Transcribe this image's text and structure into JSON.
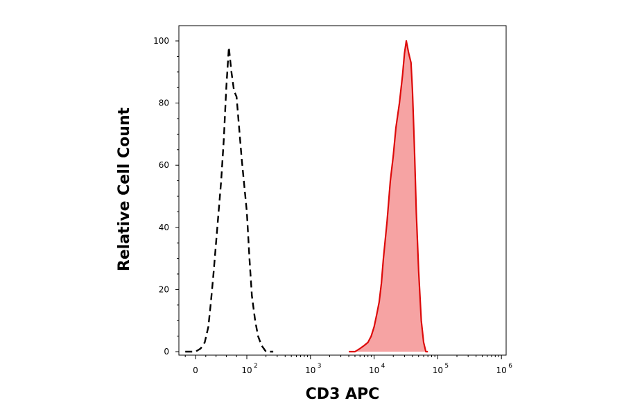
{
  "chart_data": {
    "type": "area",
    "xlabel": "CD3 APC",
    "ylabel": "Relative Cell Count",
    "x_scale": "biexponential",
    "ylim": [
      0,
      100
    ],
    "y_ticks": [
      "0",
      "20",
      "40",
      "60",
      "80",
      "100"
    ],
    "x_ticks": [
      {
        "value": 0,
        "base": "0",
        "exp": ""
      },
      {
        "value": 100,
        "base": "10",
        "exp": "2"
      },
      {
        "value": 1000,
        "base": "10",
        "exp": "3"
      },
      {
        "value": 10000,
        "base": "10",
        "exp": "4"
      },
      {
        "value": 100000,
        "base": "10",
        "exp": "5"
      },
      {
        "value": 1000000,
        "base": "10",
        "exp": "6"
      }
    ],
    "grid": false,
    "legend": "none",
    "series": [
      {
        "style": "dashed-outline",
        "color": "#000000",
        "points": [
          [
            -20,
            0
          ],
          [
            0,
            0
          ],
          [
            10,
            1
          ],
          [
            18,
            3
          ],
          [
            25,
            8
          ],
          [
            30,
            16
          ],
          [
            35,
            25
          ],
          [
            40,
            35
          ],
          [
            45,
            45
          ],
          [
            50,
            55
          ],
          [
            55,
            68
          ],
          [
            60,
            85
          ],
          [
            65,
            98
          ],
          [
            70,
            90
          ],
          [
            75,
            84
          ],
          [
            80,
            82
          ],
          [
            85,
            72
          ],
          [
            90,
            62
          ],
          [
            100,
            45
          ],
          [
            110,
            30
          ],
          [
            120,
            18
          ],
          [
            135,
            10
          ],
          [
            150,
            5
          ],
          [
            170,
            2
          ],
          [
            200,
            0
          ],
          [
            260,
            0
          ]
        ]
      },
      {
        "style": "filled",
        "color": "#dd0a0a",
        "fill": "#f6a3a3",
        "points": [
          [
            4000,
            0
          ],
          [
            5000,
            0
          ],
          [
            6000,
            1
          ],
          [
            7000,
            2
          ],
          [
            8000,
            3
          ],
          [
            9000,
            5
          ],
          [
            10000,
            8
          ],
          [
            11000,
            12
          ],
          [
            12000,
            16
          ],
          [
            13000,
            22
          ],
          [
            14000,
            30
          ],
          [
            16000,
            42
          ],
          [
            18000,
            55
          ],
          [
            20000,
            63
          ],
          [
            22000,
            72
          ],
          [
            25000,
            80
          ],
          [
            28000,
            89
          ],
          [
            30000,
            96
          ],
          [
            32000,
            100
          ],
          [
            35000,
            96
          ],
          [
            38000,
            93
          ],
          [
            40000,
            84
          ],
          [
            43000,
            65
          ],
          [
            46000,
            45
          ],
          [
            50000,
            26
          ],
          [
            55000,
            10
          ],
          [
            60000,
            3
          ],
          [
            65000,
            0
          ],
          [
            70000,
            0
          ]
        ]
      }
    ]
  }
}
